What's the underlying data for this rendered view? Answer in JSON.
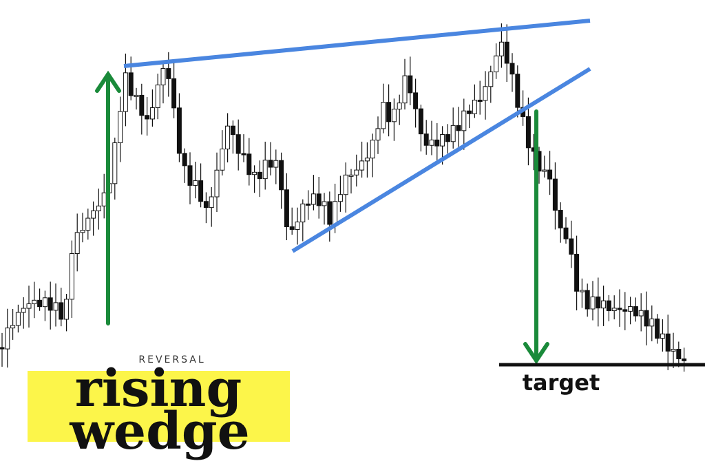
{
  "label": {
    "kicker": "REVERSAL",
    "title_line1": "rising",
    "title_line2": "wedge"
  },
  "annotation": {
    "target": "target"
  }
}
